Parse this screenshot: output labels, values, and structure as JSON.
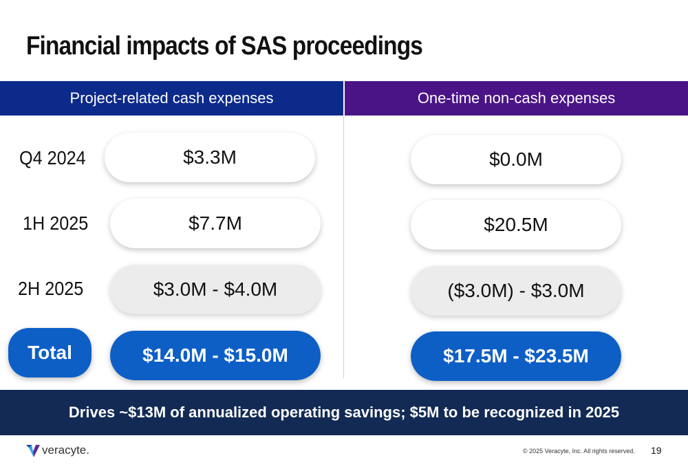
{
  "title": "Financial impacts of SAS proceedings",
  "columns": {
    "left_header": "Project-related cash expenses",
    "right_header": "One-time non-cash expenses"
  },
  "rows": [
    {
      "label": "Q4 2024",
      "cash": "$3.3M",
      "non_cash": "$0.0M"
    },
    {
      "label": "1H 2025",
      "cash": "$7.7M",
      "non_cash": "$20.5M"
    },
    {
      "label": "2H 2025",
      "cash": "$3.0M - $4.0M",
      "non_cash": "($3.0M) - $3.0M"
    }
  ],
  "total": {
    "label": "Total",
    "cash": "$14.0M - $15.0M",
    "non_cash": "$17.5M - $23.5M"
  },
  "banner": "Drives ~$13M of annualized operating savings; $5M to be recognized in 2025",
  "footer": {
    "logo_text": "veracyte.",
    "copyright": "© 2025 Veracyte, Inc. All rights reserved.",
    "page_number": "19"
  },
  "colors": {
    "left_header_bg": "#0b2a8a",
    "right_header_bg": "#4a1486",
    "total_blue": "#0d5fc6",
    "banner_bg": "#122a54"
  }
}
